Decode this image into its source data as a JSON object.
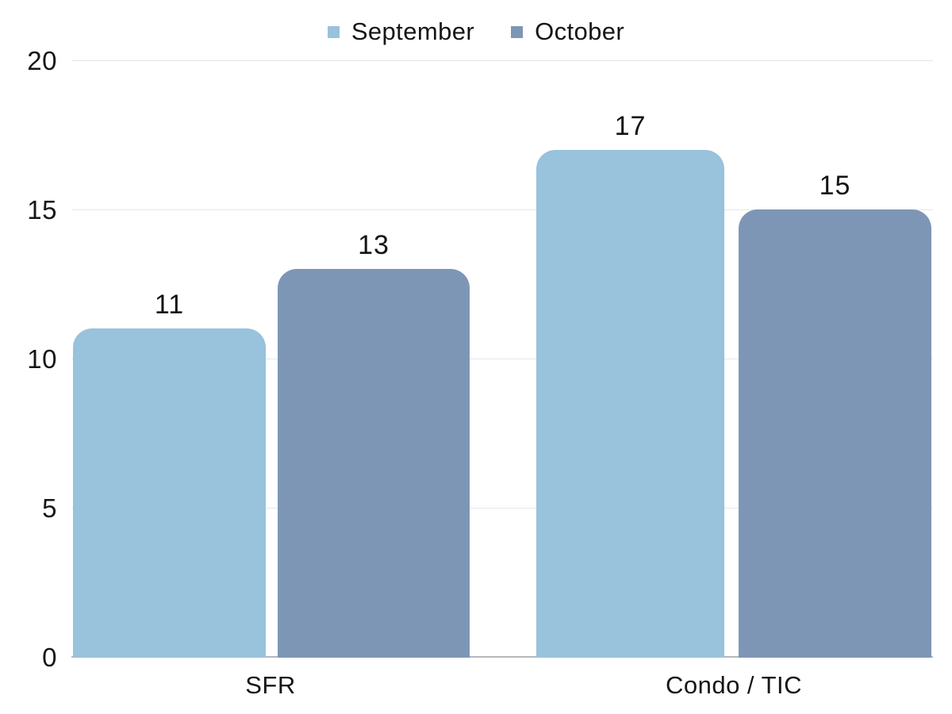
{
  "chart_data": {
    "type": "bar",
    "categories": [
      "SFR",
      "Condo / TIC"
    ],
    "series": [
      {
        "name": "September",
        "color": "#99c2dc",
        "values": [
          11,
          17
        ]
      },
      {
        "name": "October",
        "color": "#7e96b5",
        "values": [
          13,
          15
        ]
      }
    ],
    "ylim": [
      0,
      20
    ],
    "yticks": [
      0,
      5,
      10,
      15,
      20
    ],
    "grid": true,
    "legend_position": "top",
    "data_labels": true,
    "title": "",
    "xlabel": "",
    "ylabel": ""
  },
  "colors": {
    "background": "#ffffff",
    "text": "#161616",
    "gridline": "#e4e8ec",
    "baseline": "#b4b9be"
  }
}
